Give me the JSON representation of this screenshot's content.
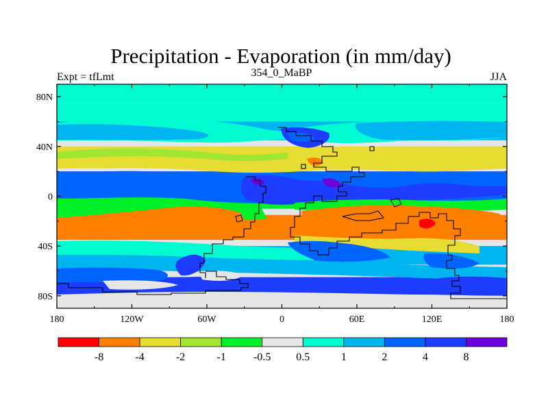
{
  "chart_data": {
    "type": "heatmap",
    "title": "Precipitation - Evaporation (in mm/day)",
    "subtitle_left": "Expt = tfLmt",
    "subtitle_center": "354_0_MaBP",
    "subtitle_right": "JJA",
    "x_ticks": [
      "180",
      "120W",
      "60W",
      "0",
      "60E",
      "120E",
      "180"
    ],
    "x_tick_values": [
      -180,
      -120,
      -60,
      0,
      60,
      120,
      180
    ],
    "y_ticks": [
      "80N",
      "40N",
      "0",
      "40S",
      "80S"
    ],
    "y_tick_values": [
      80,
      40,
      0,
      -40,
      -80
    ],
    "xlim": [
      -180,
      180
    ],
    "ylim": [
      -90,
      90
    ],
    "colorbar": {
      "colors": [
        "#ff0000",
        "#ff8000",
        "#e6dc32",
        "#a0e632",
        "#00f028",
        "#e6e6e6",
        "#00fad2",
        "#00b4f0",
        "#0064ff",
        "#1e3cff",
        "#6e00dc"
      ],
      "labels": [
        "-8",
        "-4",
        "-2",
        "-1",
        "-0.5",
        "0.5",
        "1",
        "2",
        "4",
        "8"
      ],
      "levels": [
        -8,
        -4,
        -2,
        -1,
        -0.5,
        0.5,
        1,
        2,
        4,
        8
      ]
    },
    "zonal_bands": [
      {
        "lat": [
          75,
          90
        ],
        "level_index": 6
      },
      {
        "lat": [
          60,
          75
        ],
        "level_index": 6
      },
      {
        "lat": [
          45,
          60
        ],
        "level_index": 7
      },
      {
        "lat": [
          25,
          40
        ],
        "level_index": 2
      },
      {
        "lat": [
          5,
          20
        ],
        "level_index": 8
      },
      {
        "lat": [
          -10,
          5
        ],
        "level_index": 4
      },
      {
        "lat": [
          -35,
          -15
        ],
        "level_index": 1
      },
      {
        "lat": [
          -55,
          -40
        ],
        "level_index": 7
      },
      {
        "lat": [
          -80,
          -65
        ],
        "level_index": 9
      },
      {
        "lat": [
          -90,
          -80
        ],
        "level_index": 5
      }
    ]
  }
}
